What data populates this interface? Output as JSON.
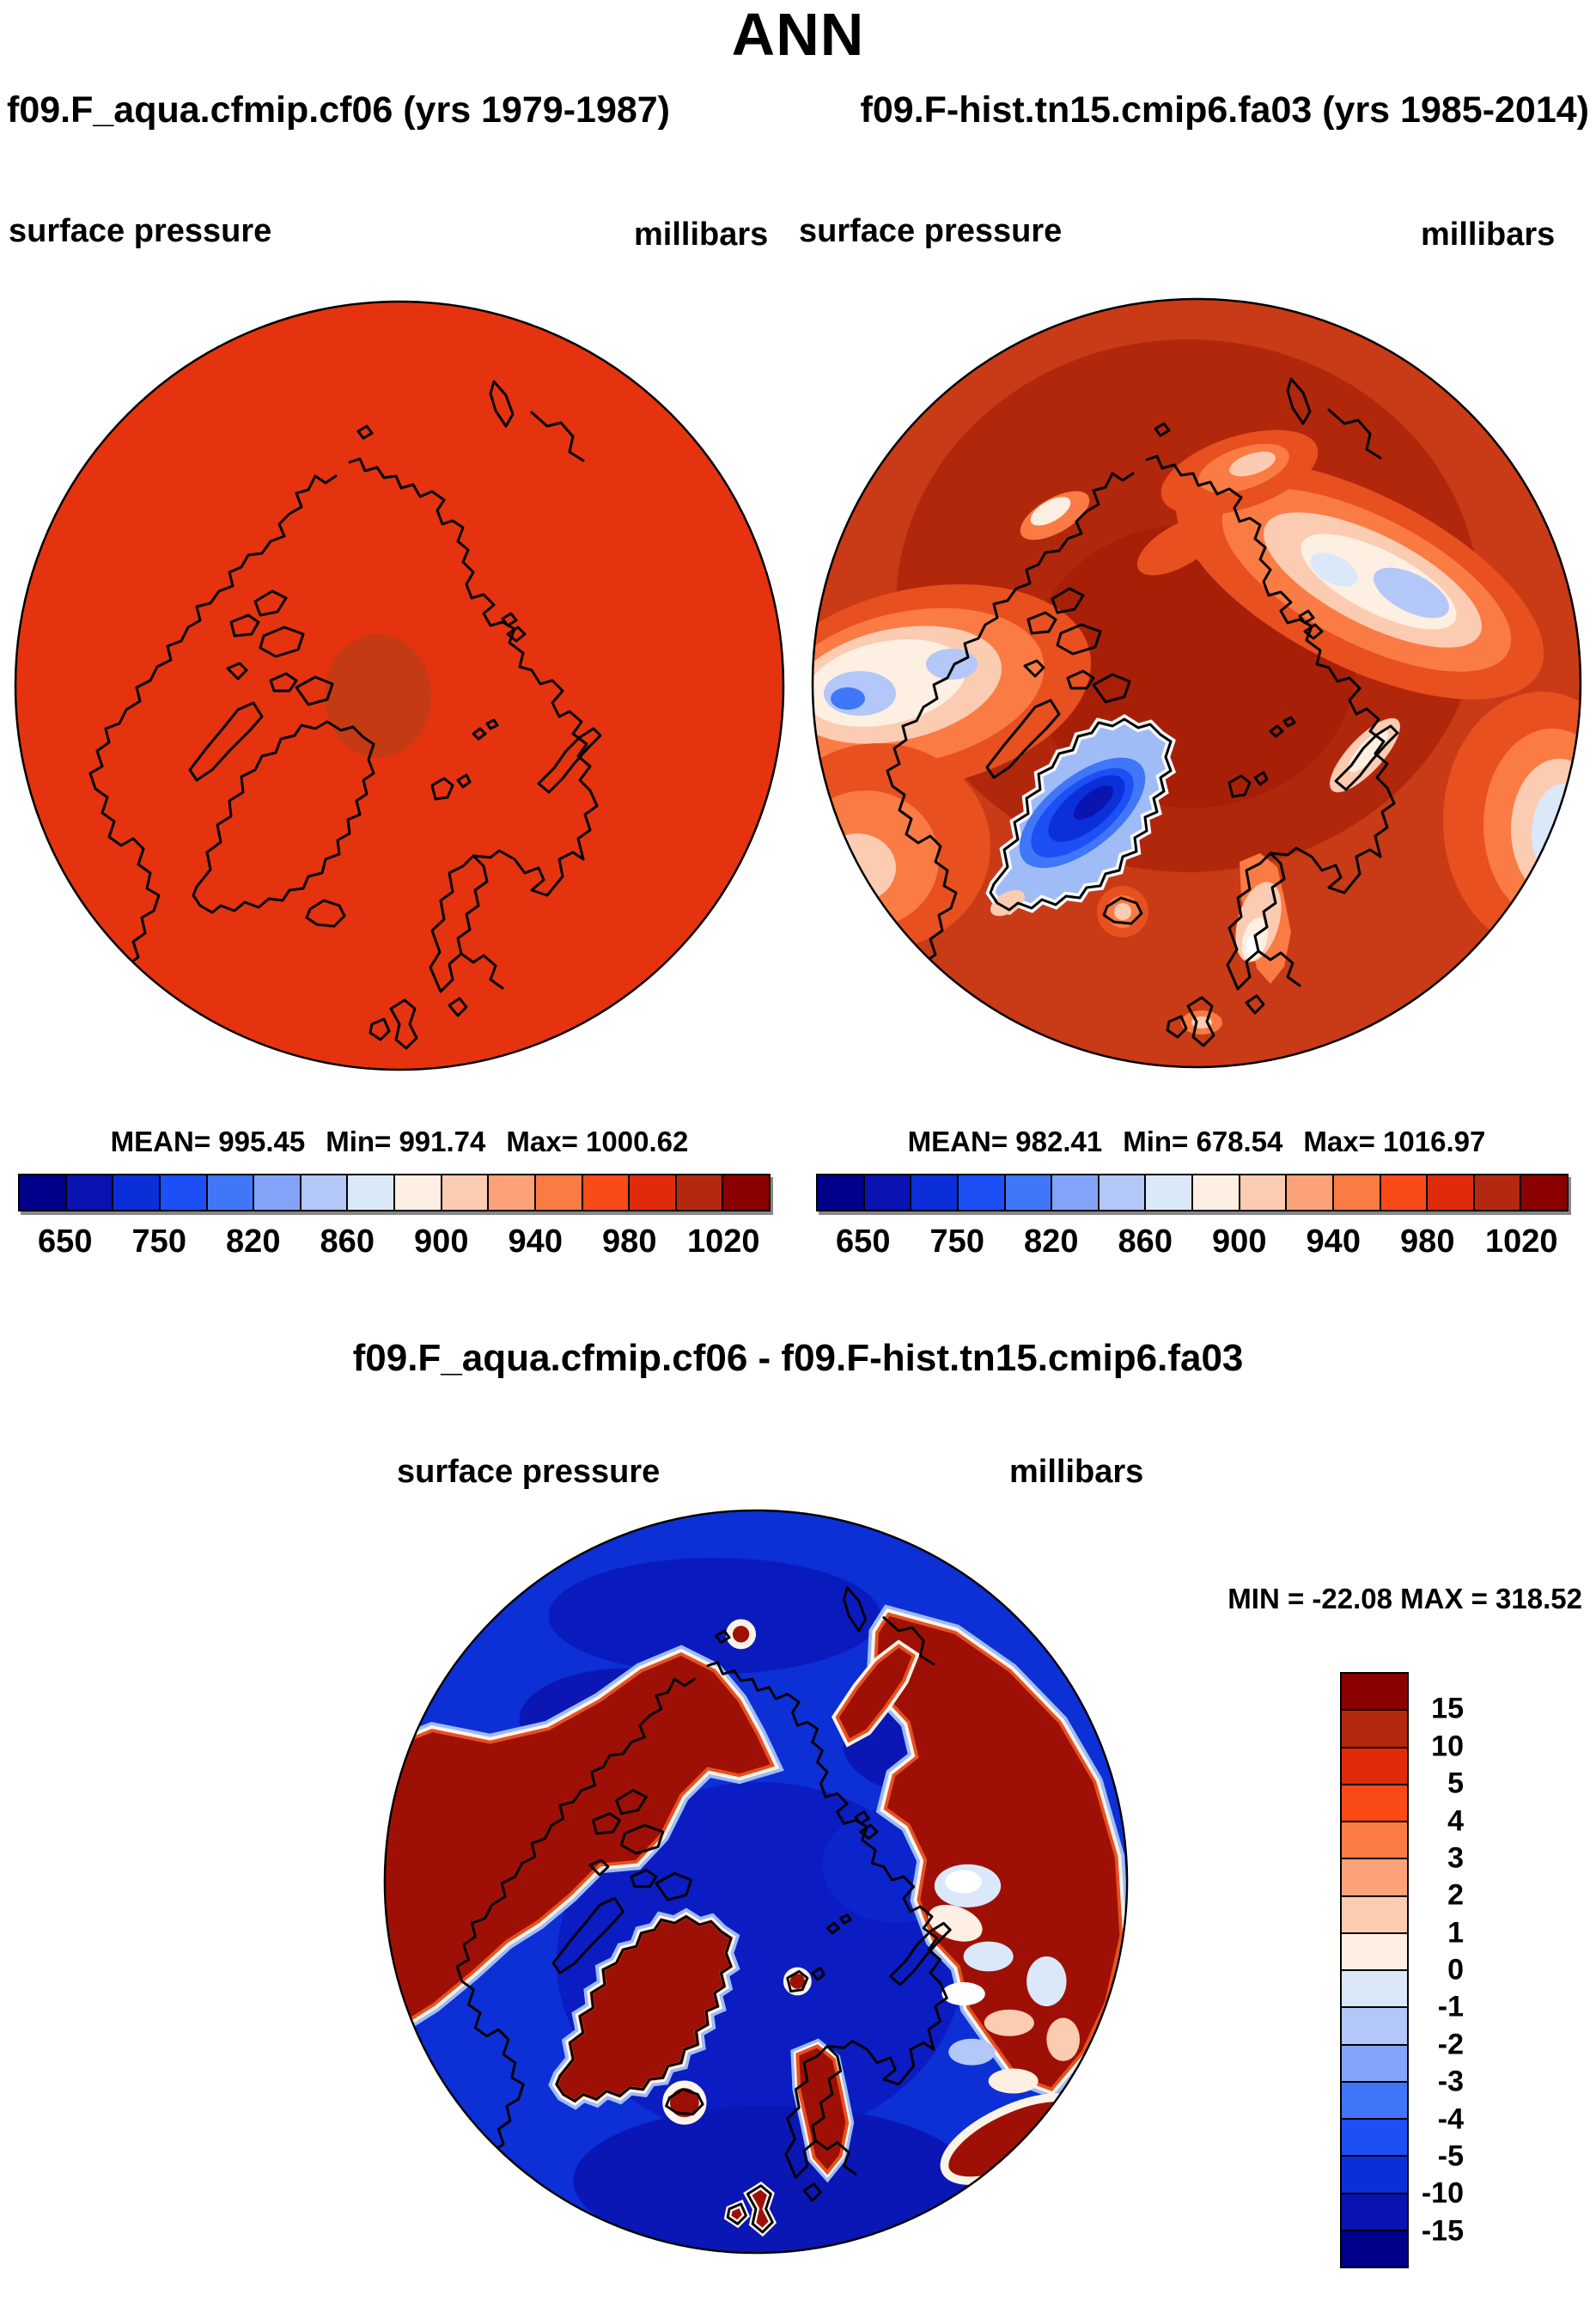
{
  "header": {
    "title": "ANN",
    "left_case": "f09.F_aqua.cfmip.cf06 (yrs 1979-1987)",
    "right_case": "f09.F-hist.tn15.cmip6.fa03 (yrs 1985-2014)"
  },
  "panel_left": {
    "variable": "surface pressure",
    "units": "millibars",
    "mean": "MEAN= 995.45",
    "min": "Min= 991.74",
    "max": "Max= 1000.62"
  },
  "panel_right": {
    "variable": "surface pressure",
    "units": "millibars",
    "mean": "MEAN= 982.41",
    "min": "Min= 678.54",
    "max": "Max= 1016.97"
  },
  "panel_diff": {
    "title": "f09.F_aqua.cfmip.cf06 - f09.F-hist.tn15.cmip6.fa03",
    "variable": "surface pressure",
    "units": "millibars",
    "minmax": "MIN = -22.08 MAX = 318.52"
  },
  "colorbar_pressure": {
    "tick_labels": [
      "650",
      "750",
      "820",
      "860",
      "900",
      "940",
      "980",
      "1020"
    ],
    "colors_left_to_right": [
      "#00008B",
      "#0A12B2",
      "#0B2ED8",
      "#1C4FF5",
      "#4076F8",
      "#82A4F8",
      "#B3C7F8",
      "#DAE8FA",
      "#FDEFE2",
      "#FBCCB2",
      "#FBA278",
      "#FB7B44",
      "#F94A18",
      "#DF2B0A",
      "#B52810",
      "#8B0000"
    ]
  },
  "colorbar_diff": {
    "tick_labels": [
      "15",
      "10",
      "5",
      "4",
      "3",
      "2",
      "1",
      "0",
      "-1",
      "-2",
      "-3",
      "-4",
      "-5",
      "-10",
      "-15"
    ],
    "colors_top_to_bottom": [
      "#8B0000",
      "#B52810",
      "#DF2B0A",
      "#F94A18",
      "#FB7B44",
      "#FBA278",
      "#FBCCB2",
      "#FDEFE2",
      "#DAE8FA",
      "#B3C7F8",
      "#82A4F8",
      "#4076F8",
      "#1C4FF5",
      "#0B2ED8",
      "#0A12B2",
      "#00008B"
    ]
  },
  "chart_data": [
    {
      "type": "heatmap",
      "subtype": "north-polar-stereographic-map",
      "season": "ANN",
      "title": "f09.F_aqua.cfmip.cf06 (yrs 1979-1987)",
      "variable": "surface pressure",
      "units": "millibars",
      "stats": {
        "mean": 995.45,
        "min": 991.74,
        "max": 1000.62
      },
      "colorbar": {
        "orientation": "horizontal",
        "n_segments": 16,
        "tick_labels": [
          650,
          750,
          820,
          860,
          900,
          940,
          980,
          1020
        ]
      },
      "description": "Nearly uniform field around 995 mb (single orange-red contour band with slightly darker patch near pole)"
    },
    {
      "type": "heatmap",
      "subtype": "north-polar-stereographic-map",
      "season": "ANN",
      "title": "f09.F-hist.tn15.cmip6.fa03 (yrs 1985-2014)",
      "variable": "surface pressure",
      "units": "millibars",
      "stats": {
        "mean": 982.41,
        "min": 678.54,
        "max": 1016.97
      },
      "colorbar": {
        "orientation": "horizontal",
        "n_segments": 16,
        "tick_labels": [
          650,
          750,
          820,
          860,
          900,
          940,
          980,
          1020
        ]
      },
      "description": "High pressure (dark red ~1010-1020) over Arctic basin and continents, storm-track lows (cream/light blue ~860-900) over N Pacific and N Atlantic, deep minimum (blue, ~680) over Greenland ice sheet"
    },
    {
      "type": "heatmap",
      "subtype": "north-polar-stereographic-map",
      "season": "ANN",
      "title": "f09.F_aqua.cfmip.cf06 - f09.F-hist.tn15.cmip6.fa03",
      "variable": "surface pressure",
      "units": "millibars",
      "stats": {
        "min": -22.08,
        "max": 318.52
      },
      "colorbar": {
        "orientation": "vertical",
        "n_segments": 16,
        "tick_labels": [
          15,
          10,
          5,
          4,
          3,
          2,
          1,
          0,
          -1,
          -2,
          -3,
          -4,
          -5,
          -10,
          -15
        ]
      },
      "description": "Difference map: large positive (dark red >15) over land/topography (Siberia, North America, Greenland, Scandinavia, Iceland), negative (blue < -15) over oceans and Arctic basin"
    }
  ]
}
